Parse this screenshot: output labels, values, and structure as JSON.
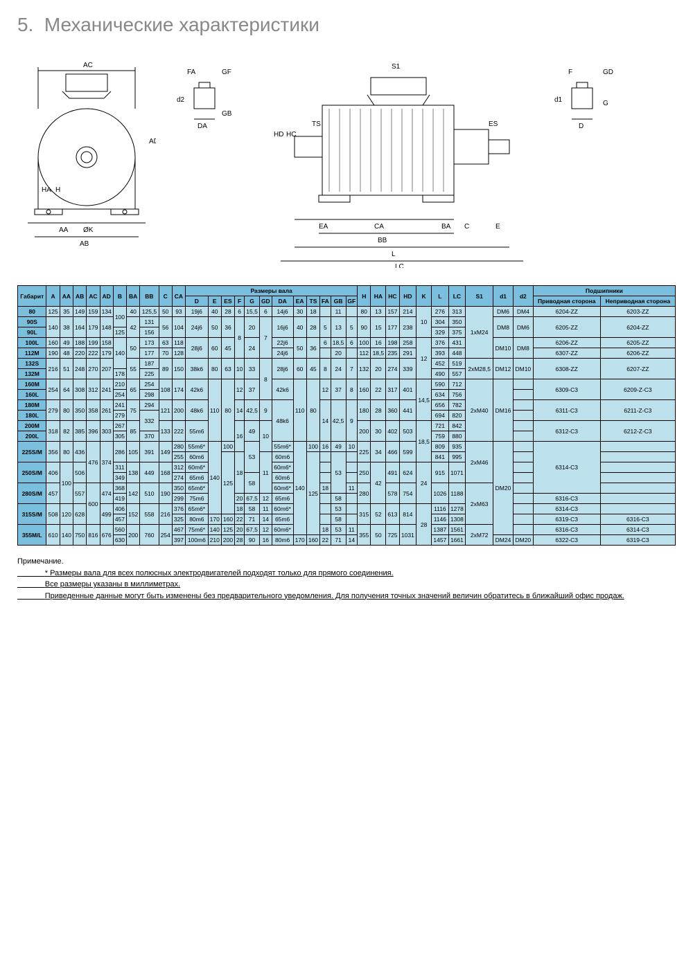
{
  "section": {
    "number": "5.",
    "title": "Механические характеристики"
  },
  "table": {
    "header_groups": {
      "shaft": "Размеры вала",
      "bearings": "Подшипники"
    },
    "columns": [
      "Габарит",
      "A",
      "AA",
      "AB",
      "AC",
      "AD",
      "B",
      "BA",
      "BB",
      "C",
      "CA",
      "D",
      "E",
      "ES",
      "F",
      "G",
      "GD",
      "DA",
      "EA",
      "TS",
      "FA",
      "GB",
      "GF",
      "H",
      "HA",
      "HC",
      "HD",
      "K",
      "L",
      "LC",
      "S1",
      "d1",
      "d2",
      "Приводная сторона",
      "Неприводная сторона"
    ],
    "rows": [
      [
        "80",
        "125",
        "35",
        "149",
        "159",
        "134",
        "100",
        "40",
        "125,5",
        "50",
        "93",
        "19j6",
        "40",
        "28",
        "6",
        "15,5",
        "6",
        "14j6",
        "30",
        "18",
        "",
        "11",
        "",
        "80",
        "13",
        "157",
        "214",
        "10",
        "276",
        "313",
        "1xM24",
        "DM6",
        "DM4",
        "6204-ZZ",
        "6203-ZZ"
      ],
      [
        "90S",
        "140",
        "38",
        "164",
        "179",
        "148",
        "100",
        "42",
        "131",
        "56",
        "104",
        "24j6",
        "50",
        "36",
        "8",
        "20",
        "7",
        "16j6",
        "40",
        "28",
        "5",
        "13",
        "5",
        "90",
        "15",
        "177",
        "238",
        "10",
        "304",
        "350",
        "1xM24",
        "DM8",
        "DM6",
        "6205-ZZ",
        "6204-ZZ"
      ],
      [
        "90L",
        "140",
        "38",
        "164",
        "179",
        "148",
        "125",
        "42",
        "156",
        "56",
        "104",
        "24j6",
        "50",
        "36",
        "8",
        "20",
        "7",
        "16j6",
        "40",
        "28",
        "5",
        "13",
        "5",
        "90",
        "15",
        "177",
        "238",
        "10",
        "329",
        "375",
        "1xM24",
        "DM8",
        "DM6",
        "6205-ZZ",
        "6204-ZZ"
      ],
      [
        "100L",
        "160",
        "49",
        "188",
        "199",
        "158",
        "140",
        "50",
        "173",
        "63",
        "118",
        "28j6",
        "60",
        "45",
        "8",
        "24",
        "7",
        "22j6",
        "50",
        "36",
        "6",
        "18,5",
        "6",
        "100",
        "16",
        "198",
        "258",
        "12",
        "376",
        "431",
        "1xM24",
        "DM10",
        "DM8",
        "6206-ZZ",
        "6205-ZZ"
      ],
      [
        "112M",
        "190",
        "48",
        "220",
        "222",
        "179",
        "140",
        "50",
        "177",
        "70",
        "128",
        "28j6",
        "60",
        "45",
        "8",
        "24",
        "7",
        "24j6",
        "50",
        "36",
        "",
        "20",
        "",
        "112",
        "18,5",
        "235",
        "291",
        "12",
        "393",
        "448",
        "1xM24",
        "DM10",
        "DM8",
        "6307-ZZ",
        "6206-ZZ"
      ],
      [
        "132S",
        "216",
        "51",
        "248",
        "270",
        "207",
        "140",
        "55",
        "187",
        "89",
        "150",
        "38k6",
        "80",
        "63",
        "10",
        "33",
        "8",
        "28j6",
        "60",
        "45",
        "8",
        "24",
        "7",
        "132",
        "20",
        "274",
        "339",
        "12",
        "452",
        "519",
        "2xM28,5",
        "DM12",
        "DM10",
        "6308-ZZ",
        "6207-ZZ"
      ],
      [
        "132M",
        "216",
        "51",
        "248",
        "270",
        "207",
        "178",
        "55",
        "225",
        "89",
        "150",
        "38k6",
        "80",
        "63",
        "10",
        "33",
        "8",
        "28j6",
        "60",
        "45",
        "8",
        "24",
        "7",
        "132",
        "20",
        "274",
        "339",
        "12",
        "490",
        "557",
        "2xM28,5",
        "DM12",
        "DM10",
        "6308-ZZ",
        "6207-ZZ"
      ],
      [
        "160M",
        "254",
        "64",
        "308",
        "312",
        "241",
        "210",
        "65",
        "254",
        "108",
        "174",
        "42k6",
        "110",
        "80",
        "12",
        "37",
        "8",
        "42k6",
        "110",
        "80",
        "12",
        "37",
        "8",
        "160",
        "22",
        "317",
        "401",
        "14,5",
        "590",
        "712",
        "2xM40",
        "DM16",
        "",
        "6309-C3",
        "6209-Z-C3"
      ],
      [
        "160L",
        "254",
        "64",
        "308",
        "312",
        "241",
        "254",
        "65",
        "298",
        "108",
        "174",
        "42k6",
        "110",
        "80",
        "12",
        "37",
        "8",
        "42k6",
        "110",
        "80",
        "12",
        "37",
        "8",
        "160",
        "22",
        "317",
        "401",
        "14,5",
        "634",
        "756",
        "2xM40",
        "DM16",
        "",
        "6309-C3",
        "6209-Z-C3"
      ],
      [
        "180M",
        "279",
        "80",
        "350",
        "358",
        "261",
        "241",
        "75",
        "294",
        "121",
        "200",
        "48k6",
        "110",
        "80",
        "14",
        "42,5",
        "9",
        "48k6",
        "110",
        "80",
        "14",
        "42,5",
        "9",
        "180",
        "28",
        "360",
        "441",
        "14,5",
        "656",
        "782",
        "2xM40",
        "DM16",
        "",
        "6311-C3",
        "6211-Z-C3"
      ],
      [
        "180L",
        "279",
        "80",
        "350",
        "358",
        "261",
        "279",
        "75",
        "332",
        "121",
        "200",
        "48k6",
        "110",
        "80",
        "14",
        "42,5",
        "9",
        "48k6",
        "110",
        "80",
        "14",
        "42,5",
        "9",
        "180",
        "28",
        "360",
        "441",
        "14,5",
        "694",
        "820",
        "2xM40",
        "DM16",
        "",
        "6311-C3",
        "6211-Z-C3"
      ],
      [
        "200M",
        "318",
        "82",
        "385",
        "396",
        "303",
        "267",
        "85",
        "332",
        "133",
        "222",
        "55m6",
        "110",
        "80",
        "16",
        "49",
        "10",
        "48k6",
        "110",
        "80",
        "14",
        "42,5",
        "9",
        "200",
        "30",
        "402",
        "503",
        "18,5",
        "721",
        "842",
        "2xM40",
        "DM16",
        "",
        "6312-C3",
        "6212-Z-C3"
      ],
      [
        "200L",
        "318",
        "82",
        "385",
        "396",
        "303",
        "305",
        "85",
        "370",
        "133",
        "222",
        "55m6",
        "110",
        "80",
        "16",
        "49",
        "10",
        "48k6",
        "110",
        "80",
        "14",
        "42,5",
        "9",
        "200",
        "30",
        "402",
        "503",
        "18,5",
        "759",
        "880",
        "2xM40",
        "DM16",
        "",
        "6312-C3",
        "6212-Z-C3"
      ],
      [
        "225S/M",
        "356",
        "80",
        "436",
        "476",
        "374",
        "286",
        "105",
        "391",
        "149",
        "280",
        "55m6*",
        "140",
        "100",
        "16",
        "53",
        "10",
        "55m6*",
        "140",
        "100",
        "16",
        "49",
        "10",
        "225",
        "34",
        "466",
        "599",
        "18,5",
        "809",
        "935",
        "2xM46",
        "DM20",
        "",
        "6314-C3",
        ""
      ],
      [
        "225S/M",
        "356",
        "80",
        "436",
        "476",
        "374",
        "286",
        "105",
        "391",
        "149",
        "255",
        "60m6",
        "140",
        "125",
        "18",
        "53",
        "11",
        "60m6",
        "140",
        "125",
        "",
        "53",
        "",
        "225",
        "34",
        "466",
        "599",
        "18,5",
        "841",
        "995",
        "2xM46",
        "DM20",
        "",
        "6314-C3",
        ""
      ],
      [
        "250S/M",
        "406",
        "100",
        "506",
        "476",
        "374",
        "311",
        "138",
        "449",
        "168",
        "312",
        "60m6*",
        "140",
        "125",
        "18",
        "53",
        "11",
        "60m6*",
        "140",
        "125",
        "",
        "53",
        "",
        "250",
        "42",
        "491",
        "624",
        "24",
        "915",
        "1071",
        "2xM46",
        "DM20",
        "",
        "6314-C3",
        ""
      ],
      [
        "250S/M",
        "406",
        "100",
        "506",
        "476",
        "374",
        "349",
        "138",
        "449",
        "168",
        "274",
        "65m6",
        "140",
        "125",
        "18",
        "58",
        "11",
        "60m6",
        "140",
        "125",
        "",
        "53",
        "",
        "250",
        "42",
        "491",
        "624",
        "24",
        "915",
        "1071",
        "2xM46",
        "DM20",
        "",
        "6314-C3",
        ""
      ],
      [
        "280S/M",
        "457",
        "100",
        "557",
        "600",
        "474",
        "368",
        "142",
        "510",
        "190",
        "350",
        "65m6*",
        "140",
        "125",
        "18",
        "58",
        "11",
        "60m6*",
        "140",
        "125",
        "18",
        "53",
        "11",
        "280",
        "42",
        "578",
        "754",
        "24",
        "1026",
        "1188",
        "2xM63",
        "DM20",
        "",
        "6314-C3",
        ""
      ],
      [
        "280S/M",
        "457",
        "100",
        "557",
        "600",
        "474",
        "419",
        "142",
        "510",
        "190",
        "299",
        "75m6",
        "140",
        "125",
        "20",
        "67,5",
        "12",
        "65m6",
        "140",
        "125",
        "",
        "58",
        "",
        "280",
        "42",
        "578",
        "754",
        "24",
        "1026",
        "1188",
        "2xM63",
        "DM20",
        "",
        "6316-C3",
        ""
      ],
      [
        "315S/M",
        "508",
        "120",
        "628",
        "600",
        "499",
        "406",
        "152",
        "558",
        "216",
        "376",
        "65m6*",
        "140",
        "125",
        "18",
        "58",
        "11",
        "60m6*",
        "140",
        "125",
        "",
        "53",
        "",
        "315",
        "52",
        "613",
        "814",
        "28",
        "1116",
        "1278",
        "2xM63",
        "DM20",
        "",
        "6314-C3",
        ""
      ],
      [
        "315S/M",
        "508",
        "120",
        "628",
        "600",
        "499",
        "457",
        "152",
        "558",
        "216",
        "325",
        "80m6",
        "170",
        "160",
        "22",
        "71",
        "14",
        "65m6",
        "140",
        "125",
        "",
        "58",
        "",
        "315",
        "52",
        "613",
        "814",
        "28",
        "1146",
        "1308",
        "2xM63",
        "DM20",
        "",
        "6319-C3",
        "6316-C3"
      ],
      [
        "355M/L",
        "610",
        "140",
        "750",
        "816",
        "676",
        "560",
        "200",
        "760",
        "254",
        "467",
        "75m6*",
        "140",
        "125",
        "20",
        "67,5",
        "12",
        "60m6*",
        "140",
        "125",
        "18",
        "53",
        "11",
        "355",
        "50",
        "725",
        "1031",
        "28",
        "1387",
        "1561",
        "2xM72",
        "DM20",
        "",
        "6316-C3",
        "6314-C3"
      ],
      [
        "355M/L",
        "610",
        "140",
        "750",
        "816",
        "676",
        "630",
        "200",
        "760",
        "254",
        "397",
        "100m6",
        "210",
        "200",
        "28",
        "90",
        "16",
        "80m6",
        "170",
        "160",
        "22",
        "71",
        "14",
        "355",
        "50",
        "725",
        "1031",
        "28",
        "1457",
        "1661",
        "2xM72",
        "DM24",
        "DM20",
        "6322-C3",
        "6319-C3"
      ]
    ]
  },
  "notes": {
    "heading": "Примечание.",
    "lines": [
      "* Размеры вала для всех полюсных электродвигателей подходят только для прямого соединения.",
      "Все размеры указаны в миллиметрах.",
      "Приведенные данные могут быть изменены без предварительного уведомления. Для получения точных значений величин обратитесь в ближайший офис продаж."
    ]
  },
  "colors": {
    "header_bg": "#7ac0de",
    "cell_bg": "#bde0ed",
    "border": "#000000",
    "title": "#888888"
  }
}
